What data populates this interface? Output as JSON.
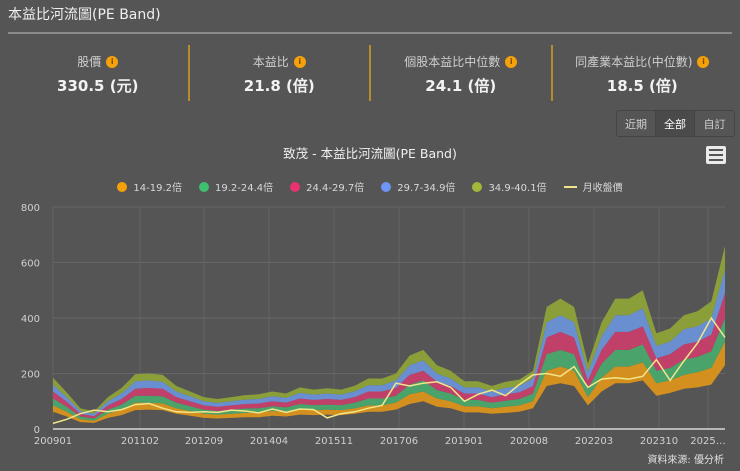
{
  "page": {
    "title": "本益比河流圖(PE Band)"
  },
  "stats": [
    {
      "label": "股價",
      "value": "330.5 (元)"
    },
    {
      "label": "本益比",
      "value": "21.8 (倍)"
    },
    {
      "label": "個股本益比中位數",
      "value": "24.1 (倍)"
    },
    {
      "label": "同產業本益比(中位數)",
      "value": "18.5 (倍)"
    }
  ],
  "range_buttons": [
    {
      "label": "近期",
      "active": false
    },
    {
      "label": "全部",
      "active": true
    },
    {
      "label": "自訂",
      "active": false
    }
  ],
  "icons": {
    "info": "info-icon",
    "menu": "hamburger-menu-icon"
  },
  "source": "資料來源: 優分析",
  "colors": {
    "background": "#555555",
    "accent_divider": "#b98a2e",
    "info_icon": "#f5a20a",
    "band_14_19": "#d4901e",
    "band_19_24": "#4aa36a",
    "band_24_29": "#c0406a",
    "band_29_34": "#6a8fd0",
    "band_34_40": "#8a9e3a",
    "price_line": "#f2e68a"
  },
  "chart_data": {
    "type": "area",
    "title": "致茂 - 本益比河流圖(PE Band)",
    "xlabel": "",
    "ylabel": "",
    "ylim": [
      0,
      800
    ],
    "yticks": [
      0,
      200,
      400,
      600,
      800
    ],
    "xticks": [
      "200901",
      "201102",
      "201209",
      "201404",
      "201511",
      "201706",
      "201901",
      "202008",
      "202203",
      "202310",
      "2025…"
    ],
    "grid": true,
    "legend_position": "top",
    "legend": [
      "14-19.2倍",
      "19.2-24.4倍",
      "24.4-29.7倍",
      "29.7-34.9倍",
      "34.9-40.1倍",
      "月收盤價"
    ],
    "x": [
      "200901",
      "200905",
      "200909",
      "201001",
      "201005",
      "201009",
      "201102",
      "201106",
      "201110",
      "201202",
      "201206",
      "201209",
      "201301",
      "201305",
      "201309",
      "201404",
      "201408",
      "201412",
      "201504",
      "201508",
      "201511",
      "201603",
      "201607",
      "201611",
      "201706",
      "201710",
      "201802",
      "201806",
      "201810",
      "201901",
      "201905",
      "201909",
      "201912",
      "202004",
      "202008",
      "202012",
      "202104",
      "202108",
      "202112",
      "202203",
      "202207",
      "202211",
      "202303",
      "202307",
      "202310",
      "202402",
      "202406",
      "202410",
      "202502",
      "202506"
    ],
    "series": [
      {
        "name": "14倍線",
        "values": [
          62,
          45,
          25,
          22,
          40,
          50,
          68,
          70,
          68,
          55,
          48,
          40,
          38,
          40,
          42,
          42,
          48,
          45,
          52,
          50,
          52,
          50,
          55,
          62,
          62,
          70,
          90,
          100,
          80,
          75,
          60,
          60,
          55,
          58,
          62,
          75,
          155,
          165,
          155,
          85,
          135,
          165,
          165,
          175,
          120,
          130,
          145,
          150,
          160,
          230
        ]
      },
      {
        "name": "19.2倍線",
        "values": [
          85,
          62,
          35,
          30,
          55,
          70,
          95,
          95,
          92,
          75,
          65,
          55,
          52,
          55,
          58,
          60,
          65,
          62,
          72,
          68,
          70,
          68,
          75,
          85,
          85,
          95,
          125,
          135,
          110,
          100,
          82,
          82,
          75,
          80,
          85,
          100,
          210,
          225,
          210,
          115,
          185,
          225,
          225,
          240,
          165,
          175,
          195,
          205,
          220,
          315
        ]
      },
      {
        "name": "24.4倍線",
        "values": [
          110,
          80,
          45,
          38,
          70,
          88,
          120,
          120,
          118,
          95,
          82,
          70,
          65,
          70,
          74,
          75,
          82,
          78,
          90,
          86,
          88,
          86,
          95,
          110,
          110,
          120,
          160,
          175,
          140,
          128,
          105,
          105,
          95,
          102,
          108,
          128,
          270,
          285,
          270,
          145,
          235,
          285,
          285,
          305,
          210,
          220,
          250,
          260,
          280,
          400
        ]
      },
      {
        "name": "29.7倍線",
        "values": [
          135,
          98,
          55,
          46,
          85,
          108,
          145,
          148,
          145,
          115,
          100,
          85,
          80,
          85,
          90,
          92,
          100,
          95,
          110,
          105,
          108,
          105,
          115,
          135,
          135,
          148,
          195,
          210,
          170,
          155,
          128,
          128,
          115,
          125,
          132,
          155,
          330,
          350,
          330,
          175,
          285,
          350,
          350,
          370,
          255,
          270,
          305,
          315,
          340,
          490
        ]
      },
      {
        "name": "34.9倍線",
        "values": [
          160,
          115,
          65,
          55,
          100,
          128,
          172,
          175,
          170,
          135,
          118,
          100,
          94,
          100,
          106,
          108,
          118,
          112,
          130,
          124,
          128,
          124,
          136,
          158,
          158,
          175,
          230,
          248,
          200,
          182,
          150,
          150,
          135,
          148,
          155,
          182,
          385,
          410,
          385,
          205,
          335,
          410,
          410,
          435,
          300,
          315,
          360,
          370,
          400,
          575
        ]
      },
      {
        "name": "40.1倍線",
        "values": [
          185,
          132,
          75,
          63,
          115,
          148,
          198,
          200,
          195,
          155,
          135,
          115,
          108,
          115,
          122,
          125,
          135,
          128,
          150,
          142,
          147,
          142,
          156,
          182,
          182,
          200,
          265,
          285,
          230,
          210,
          172,
          172,
          155,
          170,
          178,
          210,
          440,
          470,
          440,
          235,
          385,
          470,
          470,
          500,
          345,
          362,
          410,
          425,
          460,
          660
        ]
      },
      {
        "name": "月收盤價",
        "values": [
          20,
          35,
          55,
          68,
          62,
          70,
          88,
          92,
          75,
          62,
          60,
          62,
          60,
          68,
          65,
          58,
          72,
          60,
          72,
          70,
          40,
          55,
          62,
          75,
          85,
          165,
          155,
          165,
          170,
          150,
          100,
          125,
          140,
          120,
          160,
          195,
          200,
          190,
          225,
          150,
          180,
          185,
          180,
          190,
          250,
          175,
          245,
          310,
          400,
          330
        ]
      }
    ]
  }
}
